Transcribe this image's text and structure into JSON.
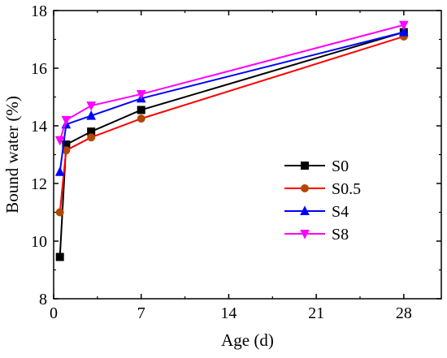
{
  "chart_data": {
    "type": "line",
    "title": "",
    "xlabel": "Age (d)",
    "ylabel": "Bound water (%)",
    "xlim": [
      0,
      31
    ],
    "ylim": [
      8,
      18
    ],
    "xticks": [
      0,
      7,
      14,
      21,
      28
    ],
    "yticks": [
      8,
      10,
      12,
      14,
      16,
      18
    ],
    "grid": false,
    "legend_position": "right",
    "series": [
      {
        "name": "S0",
        "color": "#000000",
        "marker": "square",
        "x": [
          0.5,
          1,
          3,
          7,
          28
        ],
        "y": [
          9.45,
          13.35,
          13.8,
          14.55,
          17.25
        ]
      },
      {
        "name": "S0.5",
        "color": "#ff0000",
        "marker": "circle",
        "marker_color": "#b34700",
        "x": [
          0.5,
          1,
          3,
          7,
          28
        ],
        "y": [
          11.0,
          13.15,
          13.6,
          14.25,
          17.1
        ]
      },
      {
        "name": "S4",
        "color": "#0000ff",
        "marker": "triangle-up",
        "x": [
          0.5,
          1,
          3,
          7,
          28
        ],
        "y": [
          12.4,
          14.05,
          14.35,
          14.95,
          17.25
        ]
      },
      {
        "name": "S8",
        "color": "#ff00ff",
        "marker": "triangle-down",
        "x": [
          0.5,
          1,
          3,
          7,
          28
        ],
        "y": [
          13.5,
          14.2,
          14.7,
          15.1,
          17.5
        ]
      }
    ]
  }
}
